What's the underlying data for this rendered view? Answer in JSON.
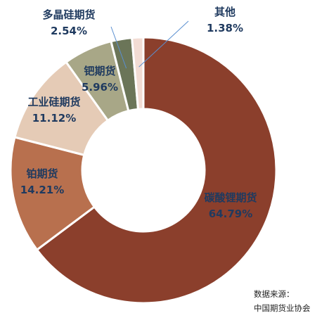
{
  "chart_data": {
    "type": "pie",
    "variant": "donut",
    "categories": [
      "碳酸锂期货",
      "铂期货",
      "工业硅期货",
      "钯期货",
      "多晶硅期货",
      "其他"
    ],
    "values": [
      64.79,
      14.21,
      11.12,
      5.96,
      2.54,
      1.38
    ],
    "value_labels": [
      "64.79%",
      "14.21%",
      "11.12%",
      "5.96%",
      "2.54%",
      "1.38%"
    ],
    "colors": [
      "#8b3f2c",
      "#b8704e",
      "#e5cbb6",
      "#a8a787",
      "#6b7558",
      "#f2dcd4"
    ],
    "start": "12 o'clock",
    "direction": "clockwise",
    "legend": "none",
    "title": ""
  },
  "source": {
    "line1": "数据来源：",
    "line2": "中国期货业协会"
  }
}
